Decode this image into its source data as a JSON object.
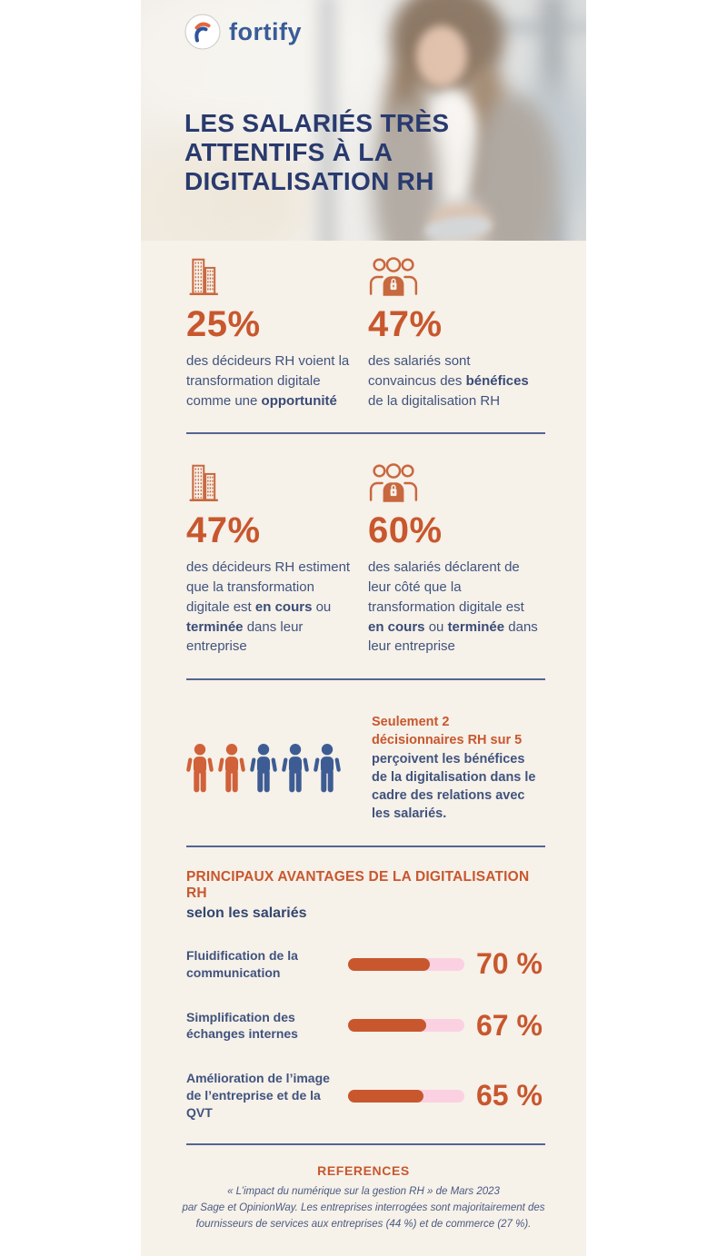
{
  "brand": {
    "name": "fortify"
  },
  "header": {
    "title_lines": [
      "LES SALARIÉS TRÈS",
      "ATTENTIFS À LA",
      "DIGITALISATION RH"
    ]
  },
  "stats": [
    {
      "value": "25%",
      "icon": "buildings-icon",
      "desc": [
        "des décideurs RH voient la transformation digitale comme une ",
        "opportunité"
      ]
    },
    {
      "value": "47%",
      "icon": "group-icon",
      "desc": [
        "des salariés sont convaincus des ",
        "bénéfices",
        " de la digitalisation RH"
      ]
    },
    {
      "value": "47%",
      "icon": "buildings-icon",
      "desc": [
        "des décideurs RH estiment que la transformation digitale est ",
        "en cours",
        " ou ",
        "terminée",
        " dans leur entreprise"
      ]
    },
    {
      "value": "60%",
      "icon": "group-icon",
      "desc": [
        "des salariés déclarent de leur côté que la transformation digitale est ",
        "en cours",
        " ou ",
        "terminée",
        " dans leur entreprise"
      ]
    }
  ],
  "pictogram": {
    "total": 5,
    "highlighted": 2,
    "colors": {
      "highlight": "#D06139",
      "base": "#3E5C94"
    },
    "text_highlight": "Seulement 2 décisionnaires RH sur 5",
    "text_rest": " perçoivent les bénéfices de la digitalisation dans le cadre des relations avec les salariés."
  },
  "chart_data": {
    "type": "bar",
    "orientation": "horizontal",
    "title": "PRINCIPAUX AVANTAGES DE LA DIGITALISATION RH",
    "subtitle": "selon les salariés",
    "unit": "%",
    "xlim": [
      0,
      100
    ],
    "grid": false,
    "bar_color": "#C8572E",
    "track_color": "#FBD1E2",
    "bars": [
      {
        "label": "Fluidification de la communication",
        "value": 70,
        "display": "70 %"
      },
      {
        "label": "Simplification des échanges internes",
        "value": 67,
        "display": "67 %"
      },
      {
        "label": "Amélioration de l’image de l’entreprise et de la QVT",
        "value": 65,
        "display": "65 %"
      }
    ]
  },
  "references": {
    "title": "REFERENCES",
    "lines": [
      "« L’impact du numérique sur la gestion RH » de Mars 2023",
      "par Sage et OpinionWay. Les entreprises interrogées sont majoritairement des",
      "fournisseurs de services aux entreprises (44 %) et de commerce (27 %)."
    ]
  },
  "colors": {
    "accent_orange": "#C8572E",
    "title_navy": "#293A6E",
    "body_navy": "#40537E",
    "background_cream": "#F6F1E9",
    "bar_track_pink": "#FBD1E2",
    "divider_navy": "#44598C",
    "person_orange": "#D06139",
    "person_blue": "#3E5C94",
    "logo_blue": "#3A5C97"
  }
}
